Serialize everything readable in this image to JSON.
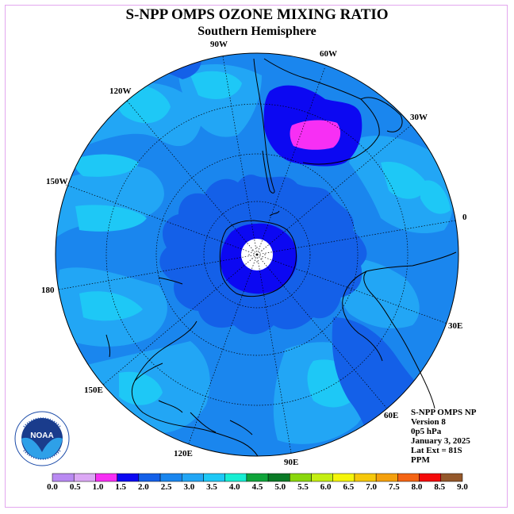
{
  "header": {
    "title": "S-NPP OMPS OZONE MIXING RATIO",
    "subtitle": "Southern Hemisphere"
  },
  "longitude_labels": {
    "w90": "90W",
    "w60": "60W",
    "w30": "30W",
    "w120": "120W",
    "w150": "150W",
    "zero": "0",
    "e180": "180",
    "e30": "30E",
    "e60": "60E",
    "e90": "90E",
    "e120": "120E",
    "e150": "150E"
  },
  "info": {
    "instrument": "S-NPP OMPS NP",
    "version": "Version 8",
    "level": "0p5 hPa",
    "date": "January 3, 2025",
    "lat_ext": "Lat Ext = 81S",
    "units": "PPM"
  },
  "logo": {
    "text": "NOAA"
  },
  "colorbar": {
    "labels": [
      "0.0",
      "0.5",
      "1.0",
      "1.5",
      "2.0",
      "2.5",
      "3.0",
      "3.5",
      "4.0",
      "4.5",
      "5.0",
      "5.5",
      "6.0",
      "6.5",
      "7.0",
      "7.5",
      "8.0",
      "8.5",
      "9.0"
    ],
    "colors": [
      "#b98af2",
      "#dca8f5",
      "#f72ff4",
      "#0c08f2",
      "#1460e8",
      "#1a86ee",
      "#22a6f5",
      "#1ec8f6",
      "#18eed3",
      "#10a43a",
      "#0a7a26",
      "#8ad70d",
      "#c4ee12",
      "#f5f50a",
      "#f6c80a",
      "#f4a00d",
      "#f46414",
      "#f40a0a",
      "#94582b"
    ]
  },
  "palette": {
    "background_field": "#1a86ee",
    "light_band": "#22a6f5",
    "lighter_band": "#1ec8f6",
    "deep_blue": "#0c08f2",
    "magenta": "#f72ff4",
    "frame": "#e3a7ef"
  }
}
